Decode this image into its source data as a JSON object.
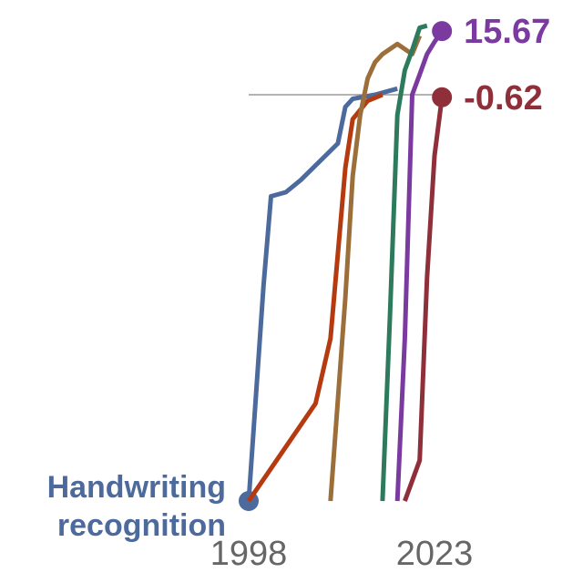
{
  "chart_data": {
    "type": "line",
    "xlim": [
      1998,
      2023
    ],
    "ylim": [
      -100,
      15.67
    ],
    "x_ticks": [
      {
        "value": 1998,
        "label": "1998"
      },
      {
        "value": 2023,
        "label": "2023"
      }
    ],
    "reference_line": {
      "y": 0
    },
    "grid": false,
    "legend": "none",
    "series": [
      {
        "key": "handwriting",
        "name": "Handwriting recognition",
        "color": "#4c6a9c",
        "label_position": "start",
        "points": [
          [
            1998,
            -100
          ],
          [
            2000,
            -47
          ],
          [
            2001,
            -25
          ],
          [
            2003,
            -24
          ],
          [
            2005,
            -21
          ],
          [
            2010,
            -12
          ],
          [
            2011,
            -3
          ],
          [
            2012,
            -1
          ],
          [
            2015,
            0
          ],
          [
            2018,
            1.5
          ]
        ]
      },
      {
        "key": "speech",
        "name": "",
        "color": "#b63a10",
        "points": [
          [
            1998,
            -100
          ],
          [
            2007,
            -76
          ],
          [
            2009,
            -60
          ],
          [
            2011,
            -18
          ],
          [
            2012,
            -6
          ],
          [
            2014,
            -1.5
          ],
          [
            2016,
            0
          ]
        ]
      },
      {
        "key": "image",
        "name": "",
        "color": "#9c6e3a",
        "points": [
          [
            2009,
            -100
          ],
          [
            2011,
            -50
          ],
          [
            2012,
            -20
          ],
          [
            2013,
            -5
          ],
          [
            2014,
            4
          ],
          [
            2015,
            8
          ],
          [
            2016,
            10
          ],
          [
            2018,
            12.5
          ],
          [
            2020,
            10
          ],
          [
            2021,
            14.5
          ]
        ]
      },
      {
        "key": "reading",
        "name": "",
        "color": "#2e7a5c",
        "points": [
          [
            2016,
            -100
          ],
          [
            2017,
            -55
          ],
          [
            2018,
            -5
          ],
          [
            2019,
            6
          ],
          [
            2020,
            11
          ],
          [
            2021,
            16.5
          ],
          [
            2022,
            17
          ]
        ]
      },
      {
        "key": "language",
        "name": "",
        "color": "#7a3aa0",
        "end_label": "15.67",
        "points": [
          [
            2018,
            -100
          ],
          [
            2019,
            -60
          ],
          [
            2020,
            0
          ],
          [
            2021,
            5
          ],
          [
            2022,
            10
          ],
          [
            2023,
            13
          ],
          [
            2024,
            15.67
          ]
        ]
      },
      {
        "key": "math",
        "name": "",
        "color": "#8e2f3a",
        "end_label": "-0.62",
        "points": [
          [
            2019,
            -100
          ],
          [
            2021,
            -90
          ],
          [
            2022,
            -45
          ],
          [
            2023,
            -15
          ],
          [
            2024,
            -0.62
          ]
        ]
      }
    ]
  }
}
